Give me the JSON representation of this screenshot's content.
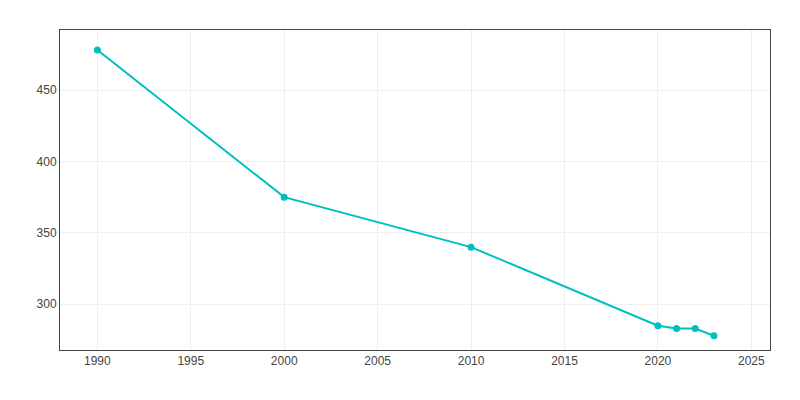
{
  "chart_data": {
    "type": "line",
    "x": [
      1990,
      2000,
      2010,
      2020,
      2021,
      2022,
      2023
    ],
    "values": [
      478,
      375,
      340,
      285,
      283,
      283,
      278
    ],
    "color": "#00BFBF",
    "marker": "o",
    "xlim": [
      1988,
      2026
    ],
    "ylim": [
      268,
      492
    ],
    "xticks": [
      1990,
      1995,
      2000,
      2005,
      2010,
      2015,
      2020,
      2025
    ],
    "yticks": [
      300,
      350,
      400,
      450
    ],
    "grid": true
  }
}
